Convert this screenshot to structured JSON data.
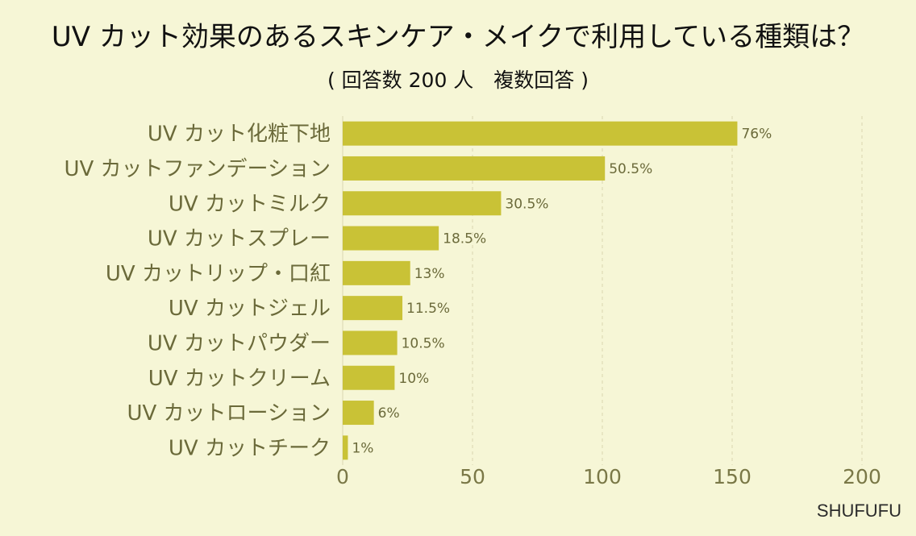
{
  "title": "UV カット効果のあるスキンケア・メイクで利用している種類は？",
  "subtitle": "( 回答数 200 人　複数回答 )",
  "brand": "SHUFUFU",
  "colors": {
    "background": "#f6f6d6",
    "bar": "#c9c236",
    "text": "#6b6a3a",
    "grid": "#d9d7b0"
  },
  "chart_data": {
    "type": "bar",
    "orientation": "horizontal",
    "categories": [
      "UV カット化粧下地",
      "UV カットファンデーション",
      "UV カットミルク",
      "UV カットスプレー",
      "UV カットリップ・口紅",
      "UV カットジェル",
      "UV カットパウダー",
      "UV カットクリーム",
      "UV カットローション",
      "UV カットチーク"
    ],
    "values": [
      152,
      101,
      61,
      37,
      26,
      23,
      21,
      20,
      12,
      2
    ],
    "value_labels": [
      "76%",
      "50.5%",
      "30.5%",
      "18.5%",
      "13%",
      "11.5%",
      "10.5%",
      "10%",
      "6%",
      "1%"
    ],
    "xlim": [
      0,
      200
    ],
    "xticks": [
      "0",
      "50",
      "100",
      "150",
      "200"
    ],
    "grid": true
  }
}
